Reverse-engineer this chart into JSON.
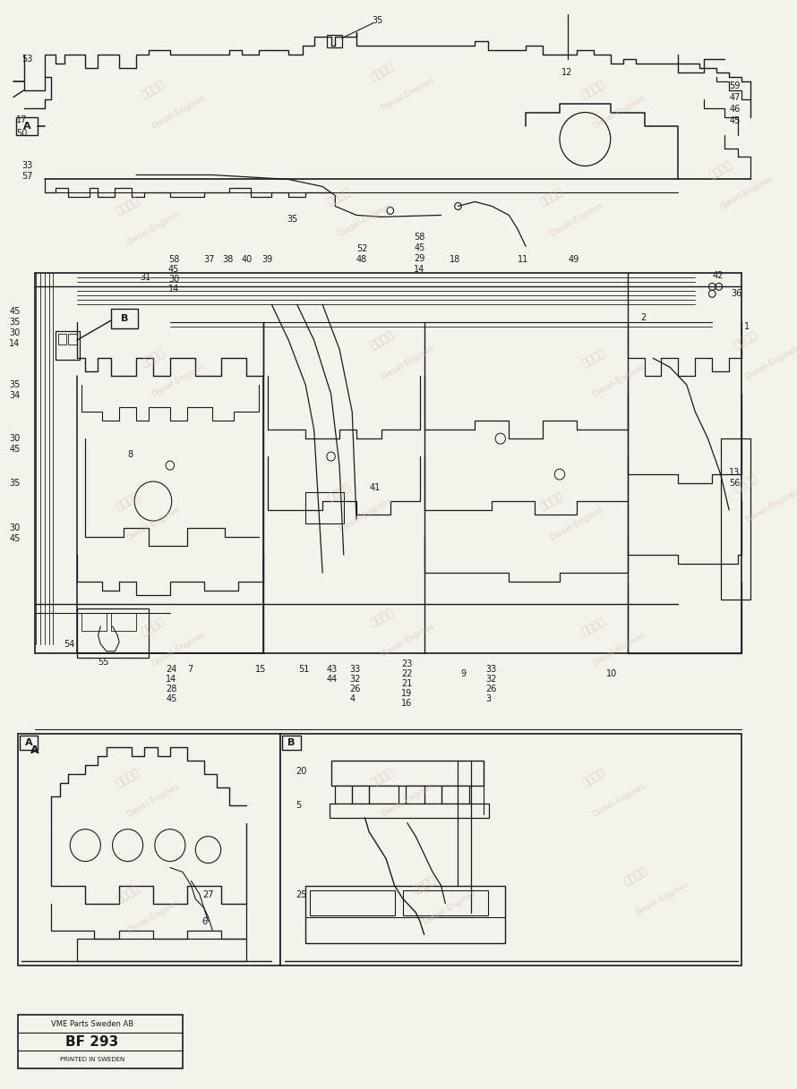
{
  "bg_color": "#f5f2eb",
  "line_color": "#1a1a1a",
  "fig_width": 8.9,
  "fig_height": 12.17,
  "title_box": {
    "line1": "VME Parts Sweden AB",
    "line2": "BF 293",
    "line3": "PRINTED IN SWEDEN"
  }
}
